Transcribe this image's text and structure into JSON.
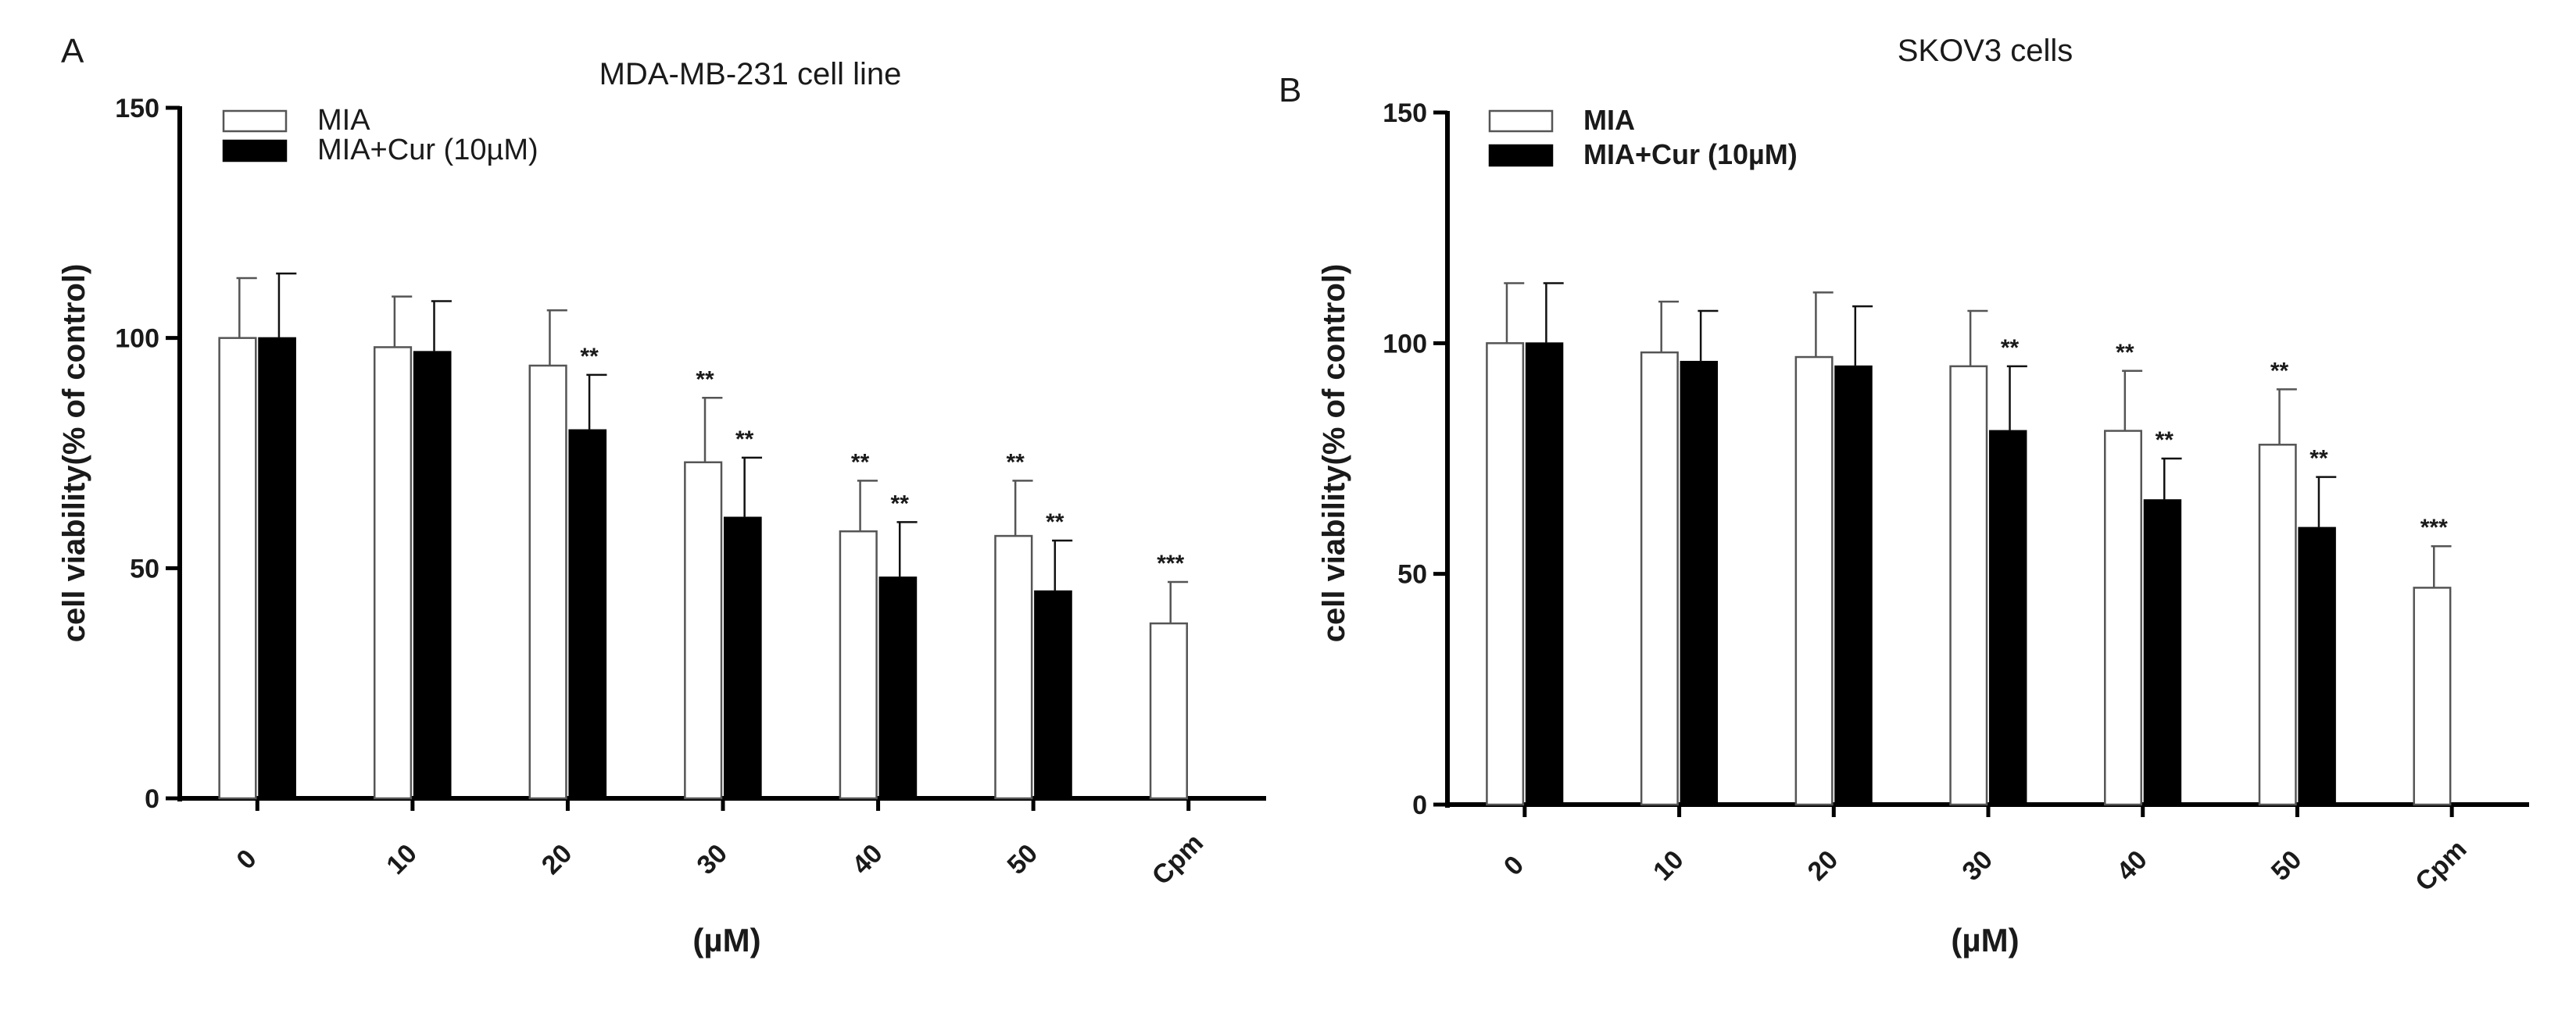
{
  "chart_data": [
    {
      "panel": "A",
      "type": "bar",
      "title": "MDA-MB-231 cell line",
      "xlabel": "(µM)",
      "ylabel": "cell viability(% of control)",
      "ylim": [
        0,
        150
      ],
      "yticks": [
        0,
        50,
        100,
        150
      ],
      "grid": false,
      "legend_position": "top-left",
      "categories": [
        "0",
        "10",
        "20",
        "30",
        "40",
        "50",
        "Cpm"
      ],
      "series": [
        {
          "name": "MIA",
          "fill": "#ffffff",
          "values": [
            100,
            98,
            94,
            73,
            58,
            57,
            38
          ],
          "errors": [
            13,
            11,
            12,
            14,
            11,
            12,
            9
          ],
          "significance": [
            "",
            "",
            "",
            "**",
            "**",
            "**",
            "***"
          ]
        },
        {
          "name": "MIA+Cur (10µM)",
          "fill": "#000000",
          "values": [
            100,
            97,
            80,
            61,
            48,
            45,
            null
          ],
          "errors": [
            14,
            11,
            12,
            13,
            12,
            11,
            null
          ],
          "significance": [
            "",
            "",
            "**",
            "**",
            "**",
            "**",
            ""
          ]
        }
      ]
    },
    {
      "panel": "B",
      "type": "bar",
      "title": "SKOV3 cells",
      "xlabel": "(µM)",
      "ylabel": "cell viability(% of control)",
      "ylim": [
        0,
        150
      ],
      "yticks": [
        0,
        50,
        100,
        150
      ],
      "grid": false,
      "legend_position": "top-left",
      "categories": [
        "0",
        "10",
        "20",
        "30",
        "40",
        "50",
        "Cpm"
      ],
      "series": [
        {
          "name": "MIA",
          "fill": "#ffffff",
          "values": [
            100,
            98,
            97,
            95,
            81,
            78,
            47
          ],
          "errors": [
            13,
            11,
            14,
            12,
            13,
            12,
            9
          ],
          "significance": [
            "",
            "",
            "",
            "",
            "**",
            "**",
            "***"
          ]
        },
        {
          "name": "MIA+Cur (10µM)",
          "fill": "#000000",
          "values": [
            100,
            96,
            95,
            81,
            66,
            60,
            null
          ],
          "errors": [
            13,
            11,
            13,
            14,
            9,
            11,
            null
          ],
          "significance": [
            "",
            "",
            "",
            "**",
            "**",
            "**",
            ""
          ]
        }
      ]
    }
  ]
}
